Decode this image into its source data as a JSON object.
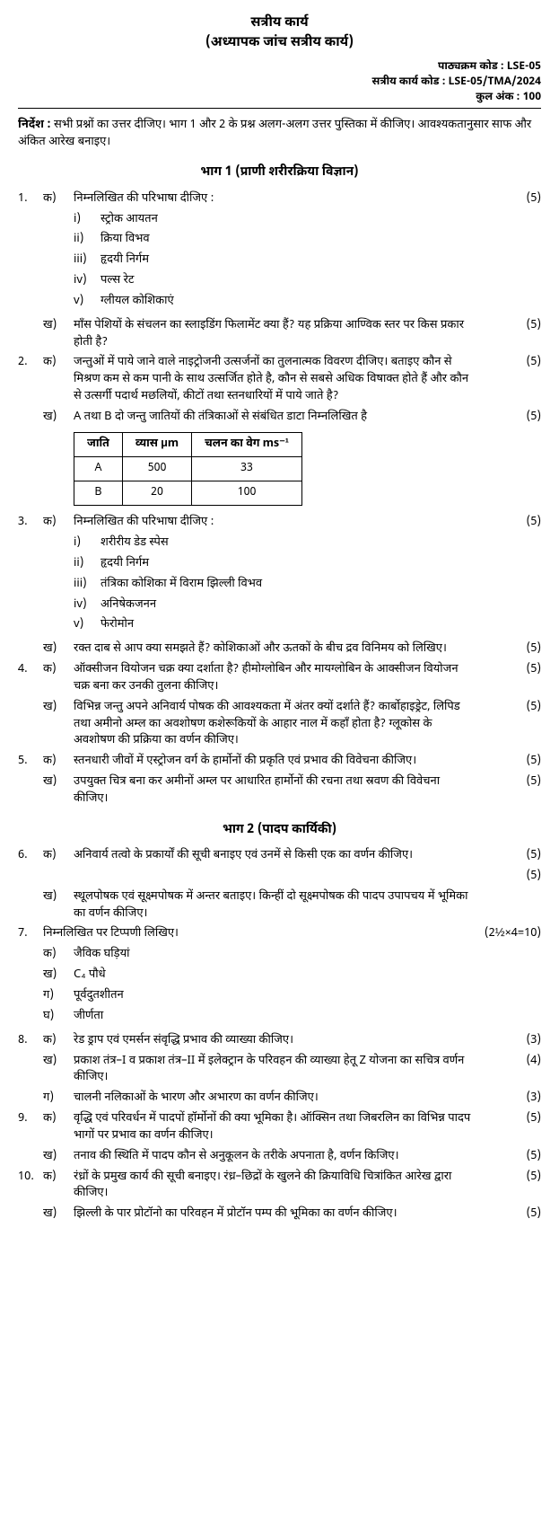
{
  "header": {
    "title1": "सत्रीय कार्य",
    "title2": "(अध्यापक जांच सत्रीय कार्य)",
    "meta1": "पाठ्यक्रम कोड : LSE-05",
    "meta2": "सत्रीय कार्य कोड : LSE-05/TMA/2024",
    "meta3": "कुल अंक : 100"
  },
  "instr": {
    "label": "निर्देश :",
    "text": "सभी प्रश्नों का उत्तर दीजिए। भाग 1 और 2 के प्रश्न अलग-अलग उत्तर पुस्तिका में कीजिए। आवश्यकतानुसार साफ और अंकित आरेख बनाइए।"
  },
  "part1": "भाग 1 (प्राणी शरीरक्रिया विज्ञान)",
  "part2": "भाग 2 (पादप कार्यिकी)",
  "q1a": {
    "num": "1.",
    "sub": "क)",
    "text": "निम्नलिखित की परिभाषा दीजिए :",
    "marks": "(5)"
  },
  "q1a_i": "स्ट्रोक आयतन",
  "q1a_ii": "क्रिया विभव",
  "q1a_iii": "हृदयी निर्गम",
  "q1a_iv": "पल्स रेट",
  "q1a_v": "ग्लीयल कोशिकाएं",
  "q1b": {
    "sub": "ख)",
    "text": "माँस पेशियों के संचलन का स्लाइडिंग फिलामेंट क्या हैं? यह प्रक्रिया आण्विक स्तर पर किस प्रकार होती है?",
    "marks": "(5)"
  },
  "q2a": {
    "num": "2.",
    "sub": "क)",
    "text": "जन्तुओं में पाये जाने वाले नाइट्रोजनी उत्सर्जनों का तुलनात्मक विवरण दीजिए। बताइए कौन से मिश्रण कम से कम पानी के साथ उत्सर्जित होते है, कौन से सबसे अधिक विषाक्त होते हैं और कौन से उत्सर्गी पदार्थ मछलियों, कीटों तथा स्तनधारियों में पाये जाते है?",
    "marks": "(5)"
  },
  "q2b": {
    "sub": "ख)",
    "text": "A तथा B दो जन्तु जातियों की तंत्रिकाओं से संबंधित डाटा निम्नलिखित है",
    "marks": "(5)"
  },
  "table": {
    "h1": "जाति",
    "h2": "व्यास μm",
    "h3": "चलन का वेग ms⁻¹",
    "r1c1": "A",
    "r1c2": "500",
    "r1c3": "33",
    "r2c1": "B",
    "r2c2": "20",
    "r2c3": "100"
  },
  "q3a": {
    "num": "3.",
    "sub": "क)",
    "text": "निम्नलिखित की परिभाषा दीजिए :",
    "marks": "(5)"
  },
  "q3a_i": "शरीरीय डेड स्पेस",
  "q3a_ii": "हृदयी निर्गम",
  "q3a_iii": "तंत्रिका कोशिका में विराम झिल्ली विभव",
  "q3a_iv": "अनिषेकजनन",
  "q3a_v": "फेरोमोन",
  "q3b": {
    "sub": "ख)",
    "text": "रक्त दाब से आप क्या समझते हैं? कोशिकाओं और ऊतकों के बीच द्रव विनिमय को लिखिए।",
    "marks": "(5)"
  },
  "q4a": {
    "num": "4.",
    "sub": "क)",
    "text": "ऑक्सीजन वियोजन चक्र क्या दर्शाता है? हीमोग्लोबिन और मायग्लोबिन के आक्सीजन वियोजन चक्र बना कर उनकी तुलना कीजिए।",
    "marks": "(5)"
  },
  "q4b": {
    "sub": "ख)",
    "text": "विभिन्न जन्तु अपने अनिवार्य पोषक की आवश्यकता में अंतर क्यों दर्शाते हैं? कार्बोहाइड्रेट, लिपिड तथा अमीनो अम्ल का अवशोषण कशेरूकियों के आहार नाल में कहाँ होता है? ग्लूकोस के अवशोषण की प्रक्रिया का वर्णन कीजिए।",
    "marks": "(5)"
  },
  "q5a": {
    "num": "5.",
    "sub": "क)",
    "text": "स्तनधारी जीवों में एस्ट्रोजन वर्ग के हार्मोनों की प्रकृति एवं प्रभाव की विवेचना कीजिए।",
    "marks": "(5)"
  },
  "q5b": {
    "sub": "ख)",
    "text": "उपयुक्त चित्र बना कर अमीनों अम्ल पर आधारित हार्मोनों की रचना तथा स्रवण की विवेचना कीजिए।",
    "marks": "(5)"
  },
  "q6a": {
    "num": "6.",
    "sub": "क)",
    "text": "अनिवार्य तत्वो के प्रकार्यों की सूची बनाइए एवं उनमें से किसी एक का वर्णन कीजिए।",
    "marks": "(5)"
  },
  "q6b": {
    "sub": "ख)",
    "text": "स्थूलपोषक एवं सूक्ष्मपोषक में अन्तर बताइए। किन्हीं दो सूक्ष्मपोषक की पादप उपापचय में भूमिका का वर्णन कीजिए।",
    "marks": "(5)"
  },
  "q7": {
    "num": "7.",
    "text": "निम्नलिखित पर टिप्पणी लिखिए।",
    "marks": "(2½×4=10)"
  },
  "q7a": "जैविक घड़ियां",
  "q7b": "C₄ पौधे",
  "q7c": "पूर्वदुतशीतन",
  "q7d": "जीर्णता",
  "q8a": {
    "num": "8.",
    "sub": "क)",
    "text": "रेड ड्राप एवं एमर्सन संवृद्धि प्रभाव की व्याख्या कीजिए।",
    "marks": "(3)"
  },
  "q8b": {
    "sub": "ख)",
    "text": "प्रकाश तंत्र–I व प्रकाश तंत्र–II में इलेक्ट्रान के परिवहन की व्याख्या हेतू Z योजना का सचित्र वर्णन कीजिए।",
    "marks": "(4)"
  },
  "q8c": {
    "sub": "ग)",
    "text": "चालनी नलिकाओं के भारण और अभारण का वर्णन कीजिए।",
    "marks": "(3)"
  },
  "q9a": {
    "num": "9.",
    "sub": "क)",
    "text": "वृद्धि एवं परिवर्धन में पादपों हॉर्मोनों की क्या भूमिका है। ऑक्सिन तथा जिबरलिन का विभिन्न पादप भागों पर प्रभाव का वर्णन कीजिए।",
    "marks": "(5)"
  },
  "q9b": {
    "sub": "ख)",
    "text": "तनाव की स्थिति में पादप कौन से अनुकूलन के तरीके अपनाता है, वर्णन किजिए।",
    "marks": "(5)"
  },
  "q10a": {
    "num": "10.",
    "sub": "क)",
    "text": "रंध्रों के प्रमुख कार्य की सूची बनाइए। रंध्र–छिद्रों के खुलने की क्रियाविधि चित्रांकित आरेख द्वारा कीजिए।",
    "marks": "(5)"
  },
  "q10b": {
    "sub": "ख)",
    "text": "झिल्ली के पार प्रोटॉनो का परिवहन में प्रोटॉन पम्प की भूमिका का वर्णन कीजिए।",
    "marks": "(5)"
  },
  "roman": {
    "i": "i)",
    "ii": "ii)",
    "iii": "iii)",
    "iv": "iv)",
    "v": "v)"
  },
  "sub": {
    "a": "क)",
    "b": "ख)",
    "c": "ग)",
    "d": "घ)"
  }
}
